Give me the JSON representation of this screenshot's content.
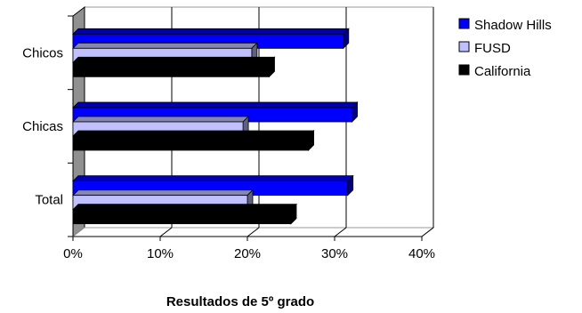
{
  "chart_data": {
    "type": "bar",
    "orientation": "horizontal",
    "style": "3d",
    "categories": [
      "Total",
      "Chicas",
      "Chicos"
    ],
    "series": [
      {
        "name": "Shadow Hills",
        "values": [
          31.5,
          32.0,
          31.0
        ],
        "color": "#0000ff"
      },
      {
        "name": "FUSD",
        "values": [
          20.0,
          19.5,
          20.5
        ],
        "color": "#c0c0ff"
      },
      {
        "name": "California",
        "values": [
          25.0,
          27.0,
          22.5
        ],
        "color": "#000000"
      }
    ],
    "xlabel": "Resultados de 5º grado",
    "ylabel": "",
    "title": "",
    "xlim": [
      0,
      40
    ],
    "xticks": [
      "0%",
      "10%",
      "20%",
      "30%",
      "40%"
    ],
    "grid": true,
    "legend_position": "top-right"
  }
}
